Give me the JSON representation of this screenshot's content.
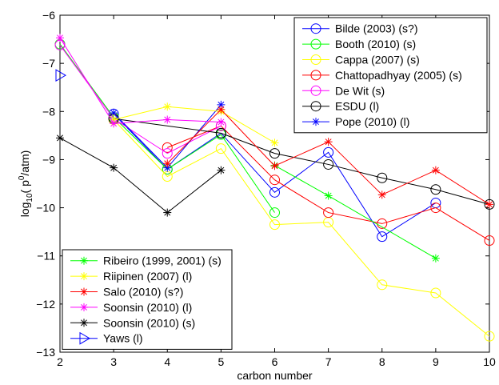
{
  "chart_data": {
    "type": "line",
    "xlabel": "carbon number",
    "ylabel_prefix": "log",
    "ylabel_sub": "10",
    "ylabel_mid": "( p",
    "ylabel_sup": "0",
    "ylabel_suffix": "/atm)",
    "xlim": [
      2,
      10
    ],
    "ylim": [
      -13,
      -6
    ],
    "x_ticks": [
      2,
      3,
      4,
      5,
      6,
      7,
      8,
      9,
      10
    ],
    "y_ticks": [
      -13,
      -12,
      -11,
      -10,
      -9,
      -8,
      -7,
      -6
    ],
    "x_tick_labels": [
      "2",
      "3",
      "4",
      "5",
      "6",
      "7",
      "8",
      "9",
      "10"
    ],
    "y_tick_labels": [
      "−13",
      "−12",
      "−11",
      "−10",
      "−9",
      "−8",
      "−7",
      "−6"
    ],
    "grid": false,
    "legend_placement": [
      "top-right",
      "bottom-left"
    ],
    "series": [
      {
        "name": "Bilde (2003) (s?)",
        "color": "#0000ff",
        "marker": "circle",
        "x": [
          3,
          4,
          5,
          6,
          7,
          8,
          9
        ],
        "y": [
          -8.05,
          -9.2,
          -8.45,
          -9.68,
          -8.85,
          -10.6,
          -9.9
        ]
      },
      {
        "name": "Booth (2010) (s)",
        "color": "#00ff00",
        "marker": "circle",
        "x": [
          2,
          3,
          4,
          5,
          6
        ],
        "y": [
          -6.6,
          -8.12,
          -9.2,
          -8.48,
          -10.1
        ]
      },
      {
        "name": "Cappa (2007) (s)",
        "color": "#ffff00",
        "marker": "circle",
        "x": [
          3,
          4,
          5,
          6,
          7,
          8,
          9,
          10
        ],
        "y": [
          -8.17,
          -9.35,
          -8.77,
          -10.35,
          -10.3,
          -11.6,
          -11.77,
          -12.67
        ]
      },
      {
        "name": "Chattopadhyay (2005) (s)",
        "color": "#ff0000",
        "marker": "circle",
        "x": [
          4,
          5,
          6,
          7,
          8,
          9,
          10
        ],
        "y": [
          -8.75,
          -8.3,
          -9.42,
          -10.1,
          -10.33,
          -10.0,
          -10.68
        ]
      },
      {
        "name": "De Wit (s)",
        "color": "#ff00ff",
        "marker": "circle",
        "x": [
          2,
          3,
          4,
          5
        ],
        "y": [
          -6.62,
          -8.15,
          -8.87,
          -8.3
        ]
      },
      {
        "name": "ESDU (l)",
        "color": "#000000",
        "marker": "circle",
        "x": [
          3,
          5,
          6,
          7,
          8,
          9,
          10
        ],
        "y": [
          -8.15,
          -8.45,
          -8.87,
          -9.1,
          -9.38,
          -9.62,
          -9.93
        ]
      },
      {
        "name": "Pope (2010) (l)",
        "color": "#0000ff",
        "marker": "star",
        "x": [
          3,
          4,
          5
        ],
        "y": [
          -8.03,
          -9.17,
          -7.86
        ]
      },
      {
        "name": "Ribeiro (1999, 2001) (s)",
        "color": "#00ff00",
        "marker": "star",
        "x": [
          6,
          7,
          9
        ],
        "y": [
          -9.12,
          -9.75,
          -11.05
        ]
      },
      {
        "name": "Riipinen (2007) (l)",
        "color": "#ffff00",
        "marker": "star",
        "x": [
          3,
          4,
          5,
          6
        ],
        "y": [
          -8.17,
          -7.9,
          -8.0,
          -8.65
        ]
      },
      {
        "name": "Salo (2010) (s?)",
        "color": "#ff0000",
        "marker": "star",
        "x": [
          4,
          5,
          6,
          7,
          8,
          9,
          10
        ],
        "y": [
          -9.08,
          -7.96,
          -9.13,
          -8.63,
          -9.73,
          -9.22,
          -9.93
        ]
      },
      {
        "name": "Soonsin (2010) (l)",
        "color": "#ff00ff",
        "marker": "star",
        "x": [
          2,
          3,
          4,
          5
        ],
        "y": [
          -6.47,
          -8.25,
          -8.17,
          -8.22
        ]
      },
      {
        "name": "Soonsin (2010) (s)",
        "color": "#000000",
        "marker": "star",
        "x": [
          2,
          3,
          4,
          5
        ],
        "y": [
          -8.55,
          -9.17,
          -10.1,
          -9.22
        ]
      },
      {
        "name": "Yaws (l)",
        "color": "#0000ff",
        "marker": "triangle-right",
        "x": [
          2
        ],
        "y": [
          -7.25
        ]
      }
    ],
    "legend_top": [
      "Bilde (2003) (s?)",
      "Booth (2010) (s)",
      "Cappa (2007) (s)",
      "Chattopadhyay (2005) (s)",
      "De Wit (s)",
      "ESDU (l)",
      "Pope (2010) (l)"
    ],
    "legend_bottom": [
      "Ribeiro (1999, 2001) (s)",
      "Riipinen (2007) (l)",
      "Salo (2010) (s?)",
      "Soonsin (2010) (l)",
      "Soonsin (2010) (s)",
      "Yaws (l)"
    ]
  }
}
